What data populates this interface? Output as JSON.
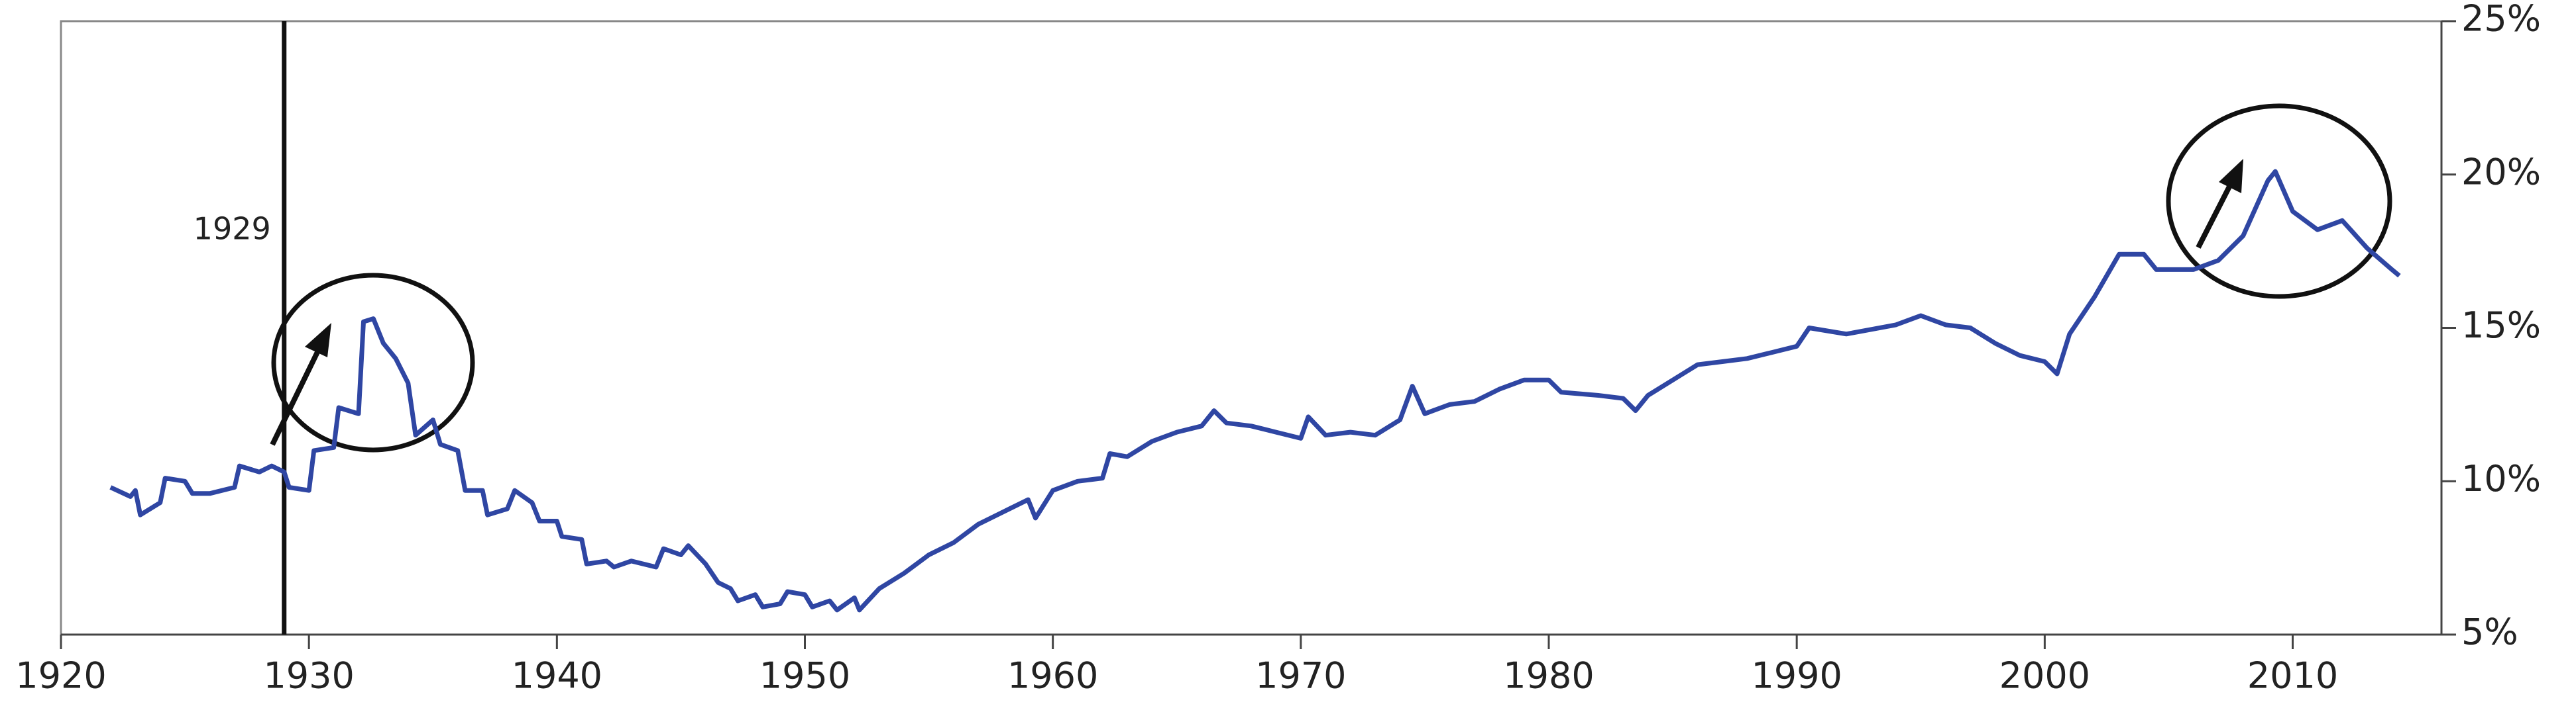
{
  "chart_data": {
    "type": "line",
    "annotations": [
      {
        "text": "1929",
        "x": 1929
      }
    ],
    "xlim": [
      1920,
      2016
    ],
    "xticks": [
      1920,
      1930,
      1940,
      1950,
      1960,
      1970,
      1980,
      1990,
      2000,
      2010
    ],
    "ylim": [
      5,
      25
    ],
    "yticks": [
      {
        "value": 5,
        "label": "5%"
      },
      {
        "value": 10,
        "label": "10%"
      },
      {
        "value": 15,
        "label": "15%"
      },
      {
        "value": 20,
        "label": "20%"
      },
      {
        "value": 25,
        "label": "25%"
      }
    ],
    "y_axis_side": "right",
    "grid": false,
    "series": [
      {
        "color": "#2f46a3",
        "x": [
          1922,
          1922.8,
          1923,
          1923.2,
          1924,
          1924.2,
          1925,
          1925.3,
          1926,
          1927,
          1927.2,
          1928,
          1928.5,
          1929,
          1929.2,
          1930,
          1930.2,
          1931,
          1931.2,
          1932,
          1932.2,
          1932.6,
          1933,
          1933.5,
          1934,
          1934.3,
          1935,
          1935.3,
          1936,
          1936.3,
          1937,
          1937.2,
          1938,
          1938.3,
          1939,
          1939.3,
          1940,
          1940.2,
          1941,
          1941.2,
          1942,
          1942.3,
          1943,
          1944,
          1944.3,
          1945,
          1945.3,
          1946,
          1946.5,
          1947,
          1947.3,
          1948,
          1948.3,
          1949,
          1949.3,
          1950,
          1950.3,
          1951,
          1951.3,
          1952,
          1952.2,
          1953,
          1954,
          1955,
          1956,
          1957,
          1958,
          1959,
          1959.3,
          1960,
          1961,
          1962,
          1962.3,
          1963,
          1964,
          1965,
          1966,
          1966.5,
          1967,
          1968,
          1969,
          1970,
          1970.3,
          1971,
          1972,
          1973,
          1974,
          1974.5,
          1975,
          1976,
          1977,
          1978,
          1979,
          1980,
          1980.5,
          1982,
          1983,
          1983.5,
          1984,
          1985,
          1986,
          1987,
          1988,
          1989,
          1990,
          1990.5,
          1992,
          1994,
          1995,
          1996,
          1997,
          1998,
          1999,
          2000,
          2000.5,
          2001,
          2002,
          2003,
          2004,
          2004.5,
          2006,
          2007,
          2008,
          2009,
          2009.3,
          2010,
          2011,
          2012,
          2013,
          2014,
          2014.3
        ],
        "values": [
          9.8,
          9.5,
          9.7,
          8.9,
          9.3,
          10.1,
          10.0,
          9.6,
          9.6,
          9.8,
          10.5,
          10.3,
          10.5,
          10.3,
          9.8,
          9.7,
          11.0,
          11.1,
          12.4,
          12.2,
          15.2,
          15.3,
          14.5,
          14.0,
          13.2,
          11.5,
          12.0,
          11.2,
          11.0,
          9.7,
          9.7,
          8.9,
          9.1,
          9.7,
          9.3,
          8.7,
          8.7,
          8.2,
          8.1,
          7.3,
          7.4,
          7.2,
          7.4,
          7.2,
          7.8,
          7.6,
          7.9,
          7.3,
          6.7,
          6.5,
          6.1,
          6.3,
          5.9,
          6.0,
          6.4,
          6.3,
          5.9,
          6.1,
          5.8,
          6.2,
          5.8,
          6.5,
          7.0,
          7.6,
          8.0,
          8.6,
          9.0,
          9.4,
          8.8,
          9.7,
          10.0,
          10.1,
          10.9,
          10.8,
          11.3,
          11.6,
          11.8,
          12.3,
          11.9,
          11.8,
          11.6,
          11.4,
          12.1,
          11.5,
          11.6,
          11.5,
          12.0,
          13.1,
          12.2,
          12.5,
          12.6,
          13.0,
          13.3,
          13.3,
          12.9,
          12.8,
          12.7,
          12.3,
          12.8,
          13.3,
          13.8,
          13.9,
          14.0,
          14.2,
          14.4,
          15.0,
          14.8,
          15.1,
          15.4,
          15.1,
          15.0,
          14.5,
          14.1,
          13.9,
          13.5,
          14.8,
          16.0,
          17.4,
          17.4,
          16.9,
          16.9,
          17.2,
          18.0,
          19.8,
          20.1,
          18.8,
          18.2,
          18.5,
          17.6,
          16.9,
          16.7
        ]
      }
    ]
  }
}
